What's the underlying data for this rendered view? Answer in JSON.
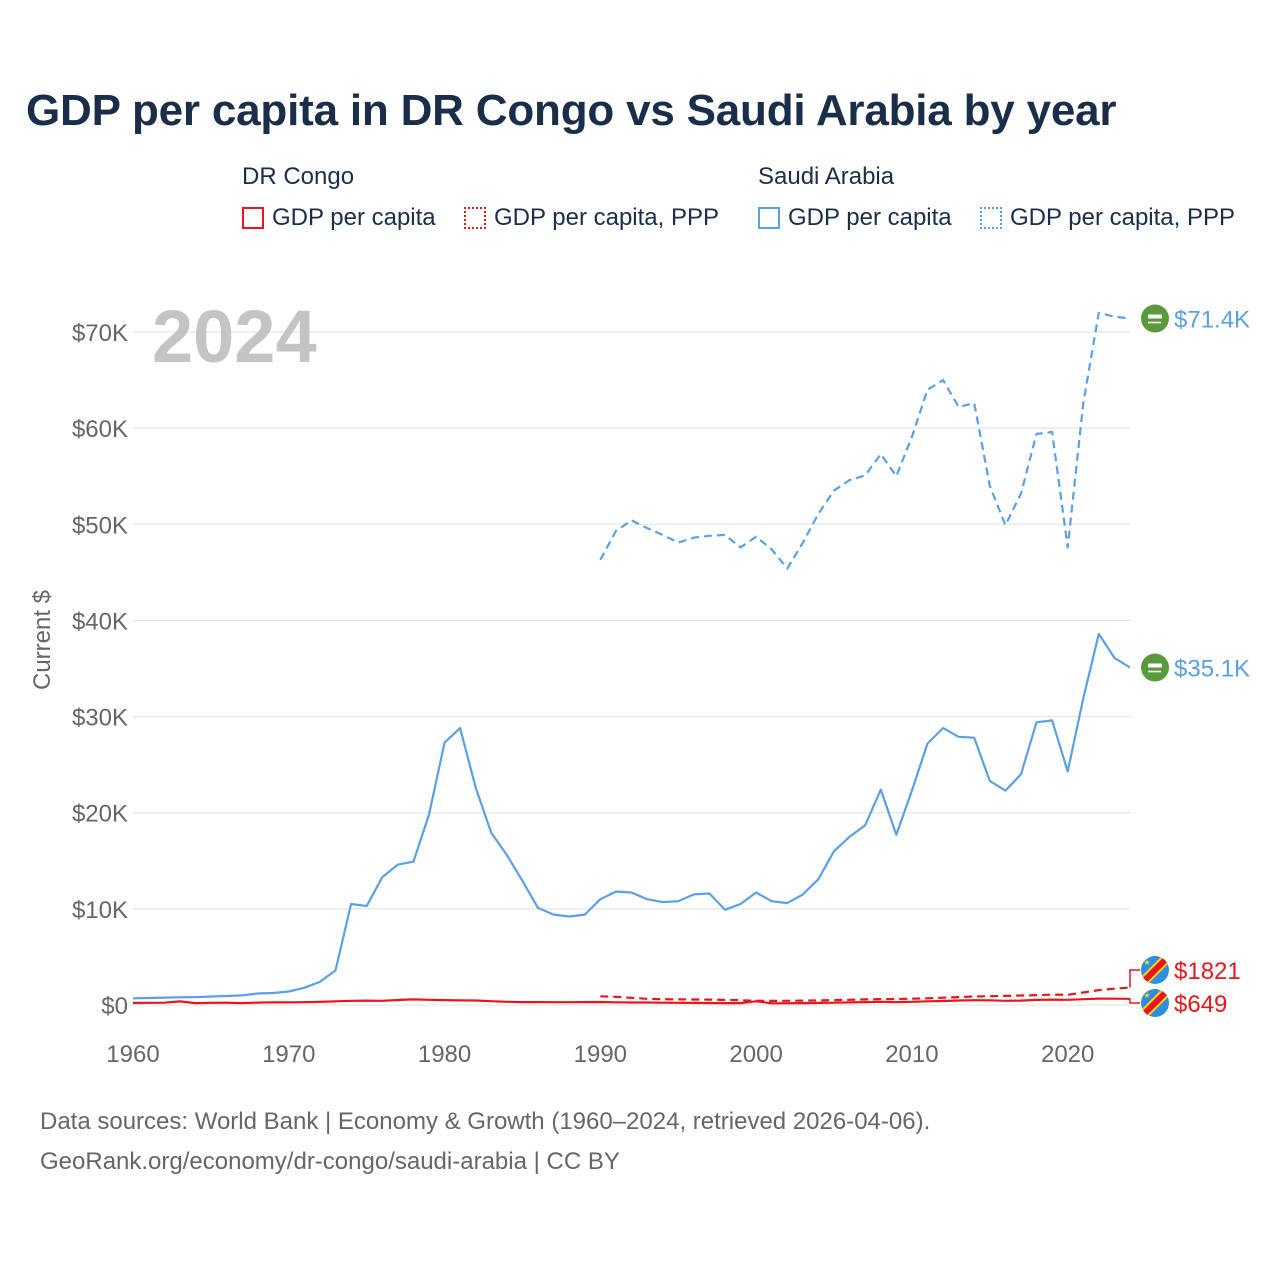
{
  "chart_data": {
    "type": "line",
    "title": "GDP per capita in DR Congo vs Saudi Arabia by year",
    "year_label": "2024",
    "ylabel": "Current $",
    "xlabel": "",
    "xlim": [
      1960,
      2024
    ],
    "ylim": [
      0,
      70000
    ],
    "x_ticks": [
      1960,
      1970,
      1980,
      1990,
      2000,
      2010,
      2020
    ],
    "x_tick_labels": [
      "1960",
      "1970",
      "1980",
      "1990",
      "2000",
      "2010",
      "2020"
    ],
    "y_ticks": [
      0,
      10000,
      20000,
      30000,
      40000,
      50000,
      60000,
      70000
    ],
    "y_tick_labels": [
      "$0",
      "$10K",
      "$20K",
      "$30K",
      "$40K",
      "$50K",
      "$60K",
      "$70K"
    ],
    "grid": true,
    "legend": {
      "groups": [
        {
          "name": "DR Congo",
          "items": [
            {
              "label": "GDP per capita",
              "style": "solid"
            },
            {
              "label": "GDP per capita, PPP",
              "style": "dotted"
            }
          ]
        },
        {
          "name": "Saudi Arabia",
          "items": [
            {
              "label": "GDP per capita",
              "style": "solid"
            },
            {
              "label": "GDP per capita, PPP",
              "style": "dotted"
            }
          ]
        }
      ],
      "placement": "top"
    },
    "series": [
      {
        "name": "Saudi Arabia GDP per capita, PPP",
        "country": "Saudi Arabia",
        "color": "#5aa0e6",
        "dash": "dashed",
        "x": [
          1990,
          1991,
          1992,
          1993,
          1994,
          1995,
          1996,
          1997,
          1998,
          1999,
          2000,
          2001,
          2002,
          2003,
          2004,
          2005,
          2006,
          2007,
          2008,
          2009,
          2010,
          2011,
          2012,
          2013,
          2014,
          2015,
          2016,
          2017,
          2018,
          2019,
          2020,
          2021,
          2022,
          2023,
          2024
        ],
        "values": [
          46300,
          49300,
          50400,
          49600,
          48900,
          48100,
          48600,
          48800,
          48900,
          47600,
          48700,
          47400,
          45400,
          48100,
          51100,
          53500,
          54600,
          55100,
          57300,
          55000,
          59100,
          64000,
          65000,
          62200,
          62600,
          54000,
          49900,
          53200,
          59400,
          59600,
          47600,
          62600,
          72000,
          71600,
          71400
        ],
        "end_label": "$71.4K"
      },
      {
        "name": "Saudi Arabia GDP per capita",
        "country": "Saudi Arabia",
        "color": "#5aa0e6",
        "dash": "solid",
        "x": [
          1960,
          1961,
          1962,
          1963,
          1964,
          1965,
          1966,
          1967,
          1968,
          1969,
          1970,
          1971,
          1972,
          1973,
          1974,
          1975,
          1976,
          1977,
          1978,
          1979,
          1980,
          1981,
          1982,
          1983,
          1984,
          1985,
          1986,
          1987,
          1988,
          1989,
          1990,
          1991,
          1992,
          1993,
          1994,
          1995,
          1996,
          1997,
          1998,
          1999,
          2000,
          2001,
          2002,
          2003,
          2004,
          2005,
          2006,
          2007,
          2008,
          2009,
          2010,
          2011,
          2012,
          2013,
          2014,
          2015,
          2016,
          2017,
          2018,
          2019,
          2020,
          2021,
          2022,
          2023,
          2024
        ],
        "values": [
          700,
          730,
          770,
          800,
          820,
          880,
          940,
          1000,
          1200,
          1250,
          1400,
          1800,
          2400,
          3600,
          10500,
          10300,
          13300,
          14600,
          14900,
          19800,
          27300,
          28800,
          22600,
          17900,
          15600,
          12900,
          10100,
          9400,
          9200,
          9400,
          11000,
          11800,
          11700,
          11000,
          10700,
          10800,
          11500,
          11600,
          9900,
          10500,
          11700,
          10800,
          10600,
          11500,
          13100,
          16000,
          17500,
          18700,
          22400,
          17700,
          22300,
          27200,
          28800,
          27900,
          27800,
          23300,
          22300,
          24000,
          29400,
          29600,
          24300,
          31900,
          38600,
          36100,
          35100
        ],
        "end_label": "$35.1K"
      },
      {
        "name": "DR Congo GDP per capita, PPP",
        "country": "DR Congo",
        "color": "#e8151b",
        "dash": "dashed",
        "x": [
          1990,
          1991,
          1992,
          1993,
          1994,
          1995,
          1996,
          1997,
          1998,
          1999,
          2000,
          2001,
          2002,
          2003,
          2004,
          2005,
          2006,
          2007,
          2008,
          2009,
          2010,
          2011,
          2012,
          2013,
          2014,
          2015,
          2016,
          2017,
          2018,
          2019,
          2020,
          2021,
          2022,
          2023,
          2024
        ],
        "values": [
          900,
          850,
          750,
          650,
          600,
          580,
          570,
          560,
          530,
          500,
          450,
          430,
          440,
          460,
          480,
          510,
          540,
          580,
          610,
          620,
          660,
          700,
          760,
          820,
          880,
          920,
          950,
          990,
          1030,
          1080,
          1060,
          1300,
          1550,
          1700,
          1821
        ],
        "end_label": "$1821"
      },
      {
        "name": "DR Congo GDP per capita",
        "country": "DR Congo",
        "color": "#e8151b",
        "dash": "solid",
        "x": [
          1960,
          1961,
          1962,
          1963,
          1964,
          1965,
          1966,
          1967,
          1968,
          1969,
          1970,
          1971,
          1972,
          1973,
          1974,
          1975,
          1976,
          1977,
          1978,
          1979,
          1980,
          1981,
          1982,
          1983,
          1984,
          1985,
          1986,
          1987,
          1988,
          1989,
          1990,
          1991,
          1992,
          1993,
          1994,
          1995,
          1996,
          1997,
          1998,
          1999,
          2000,
          2001,
          2002,
          2003,
          2004,
          2005,
          2006,
          2007,
          2008,
          2009,
          2010,
          2011,
          2012,
          2013,
          2014,
          2015,
          2016,
          2017,
          2018,
          2019,
          2020,
          2021,
          2022,
          2023,
          2024
        ],
        "values": [
          220,
          230,
          240,
          370,
          200,
          230,
          240,
          200,
          250,
          280,
          270,
          290,
          320,
          380,
          440,
          460,
          440,
          520,
          580,
          540,
          510,
          480,
          470,
          400,
          330,
          300,
          300,
          290,
          290,
          300,
          310,
          280,
          260,
          260,
          240,
          230,
          220,
          210,
          200,
          200,
          390,
          180,
          190,
          200,
          220,
          240,
          270,
          300,
          330,
          300,
          330,
          380,
          420,
          470,
          500,
          490,
          440,
          460,
          530,
          560,
          540,
          600,
          670,
          660,
          649
        ],
        "end_label": "$649"
      }
    ]
  },
  "footer": {
    "line1": "Data sources: World Bank | Economy & Growth (1960–2024, retrieved 2026-04-06).",
    "line2": "GeoRank.org/economy/dr-congo/saudi-arabia | CC BY"
  },
  "colors": {
    "congo": "#e8151b",
    "saudi": "#5aa0e6",
    "saudi_flag": "#5a9a3c",
    "congo_flag": "#2f8ee0",
    "title": "#1a2e4a",
    "axis_text": "#666666",
    "grid": "#e6e6e6",
    "year_watermark": "#c4c4c4"
  },
  "icons": {
    "saudi": "saudi-arabia-flag-icon",
    "congo": "dr-congo-flag-icon"
  }
}
